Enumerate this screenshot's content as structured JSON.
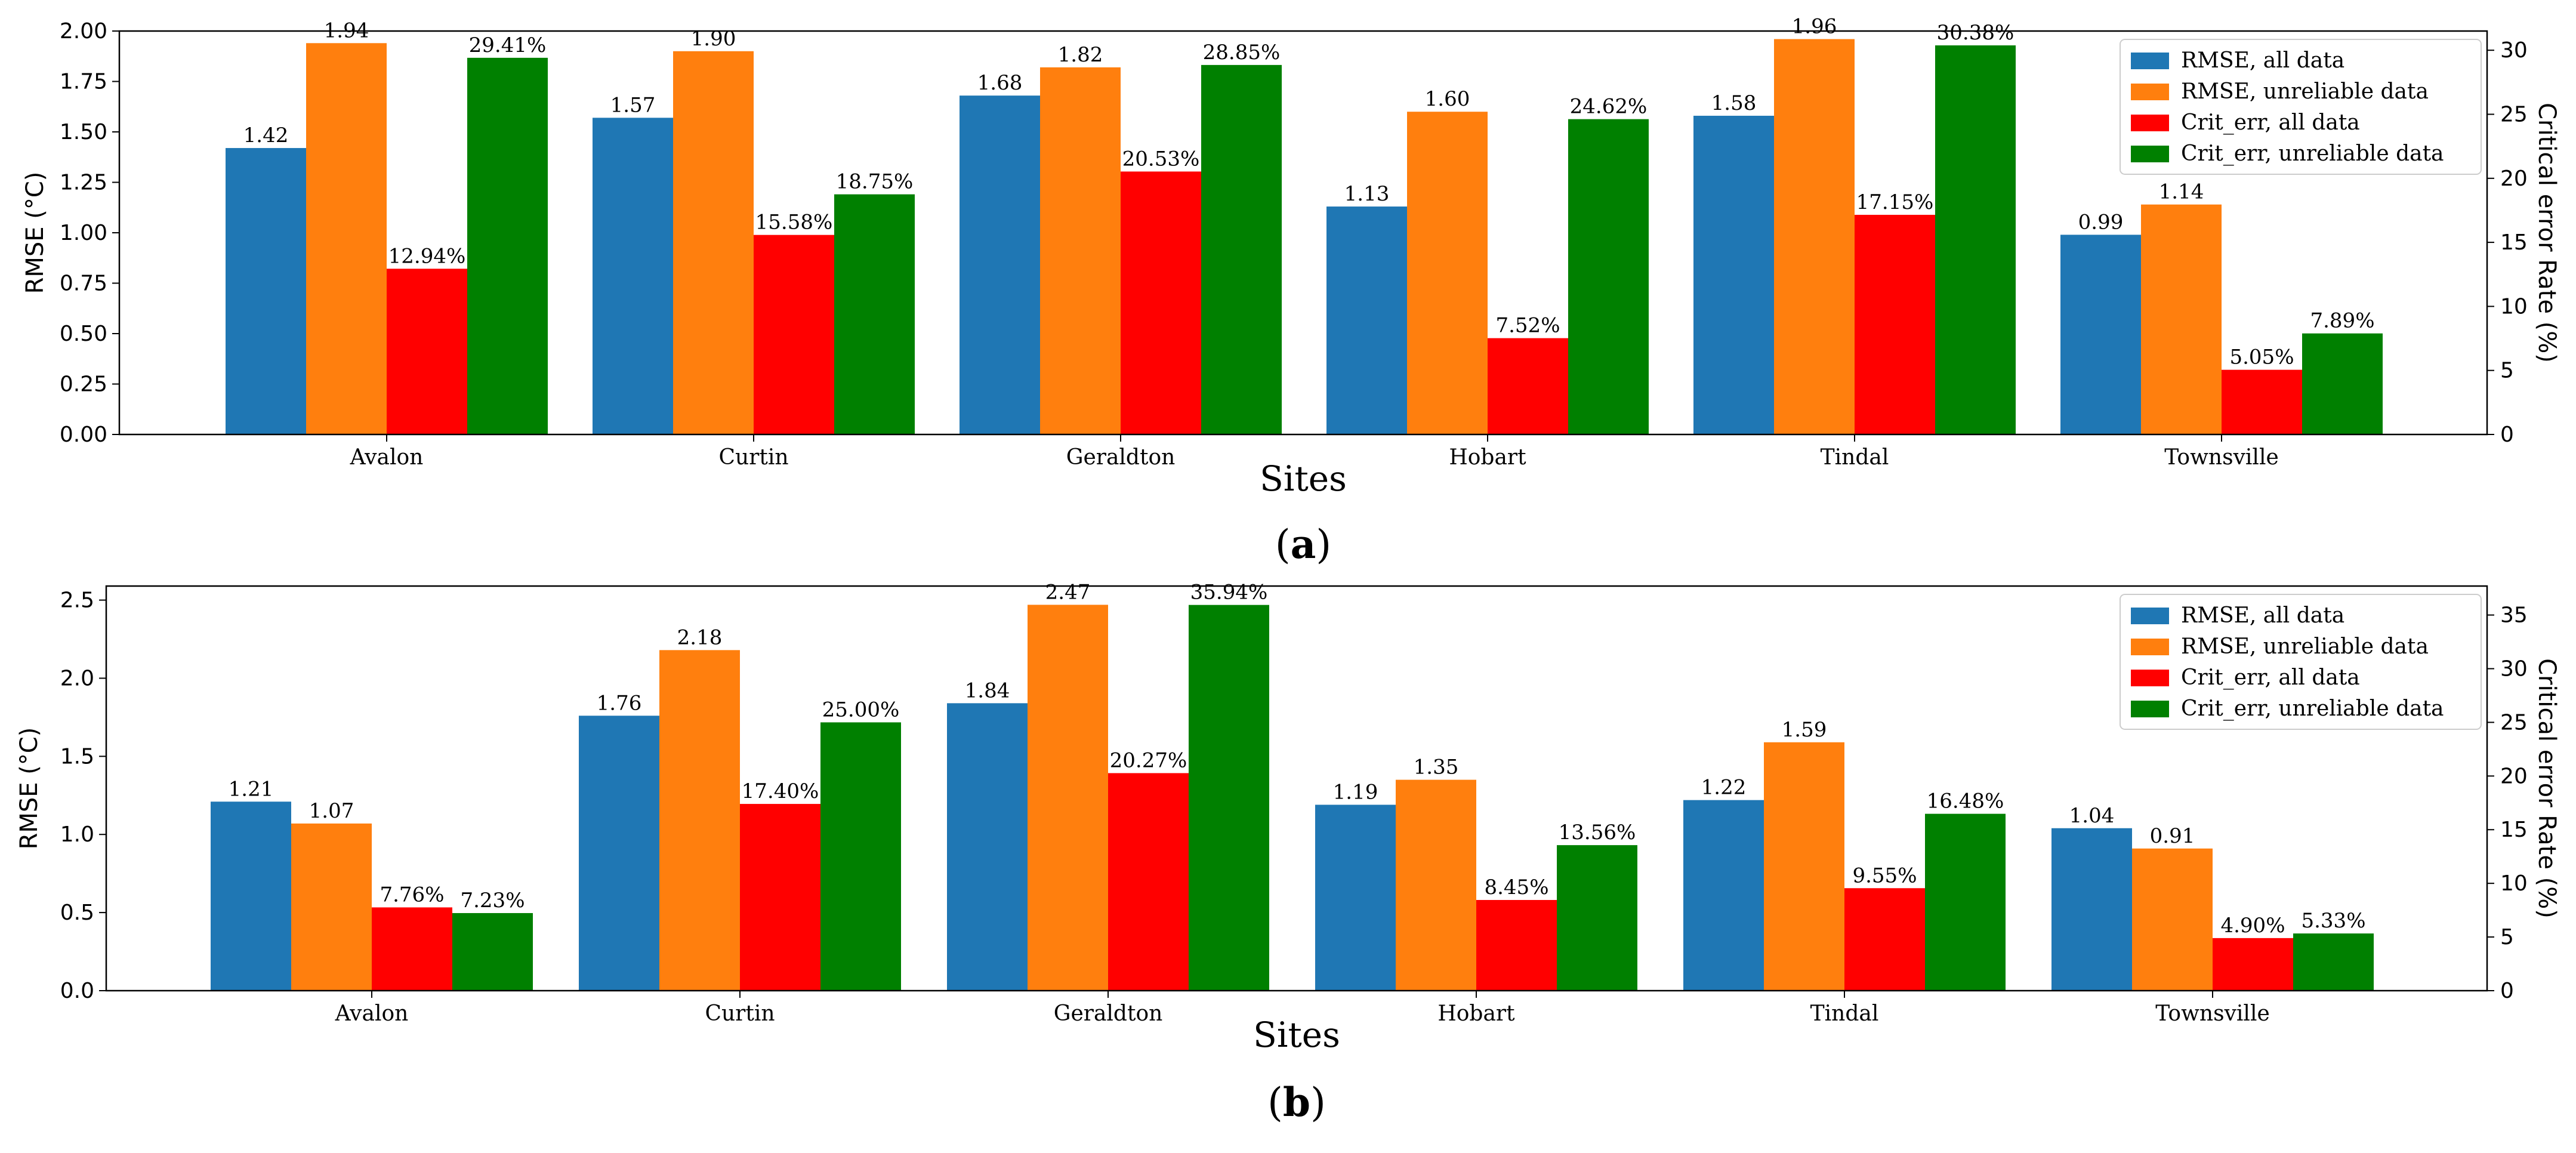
{
  "chart_data": [
    {
      "type": "bar",
      "panel": "(a)",
      "panel_letter": "a",
      "xlabel": "Sites",
      "ylabel": "RMSE (°C)",
      "y2label": "Critical error Rate (%)",
      "categories": [
        "Avalon",
        "Curtin",
        "Geraldton",
        "Hobart",
        "Tindal",
        "Townsville"
      ],
      "ylim": [
        0,
        2.0
      ],
      "yticks": [
        "0.00",
        "0.25",
        "0.50",
        "0.75",
        "1.00",
        "1.25",
        "1.50",
        "1.75",
        "2.00"
      ],
      "y2lim": [
        0,
        31.5
      ],
      "y2ticks": [
        "0",
        "5",
        "10",
        "15",
        "20",
        "25",
        "30"
      ],
      "legend_position": "top-right",
      "series": [
        {
          "name": "RMSE, all data",
          "axis": "left",
          "color": "#1f77b4",
          "values": [
            1.42,
            1.57,
            1.68,
            1.13,
            1.58,
            0.99
          ],
          "labels": [
            "1.42",
            "1.57",
            "1.68",
            "1.13",
            "1.58",
            "0.99"
          ]
        },
        {
          "name": "RMSE, unreliable data",
          "axis": "left",
          "color": "#ff7f0e",
          "values": [
            1.94,
            1.9,
            1.82,
            1.6,
            1.96,
            1.14
          ],
          "labels": [
            "1.94",
            "1.90",
            "1.82",
            "1.60",
            "1.96",
            "1.14"
          ]
        },
        {
          "name": "Crit_err, all data",
          "axis": "right",
          "color": "#ff0000",
          "values": [
            12.94,
            15.58,
            20.53,
            7.52,
            17.15,
            5.05
          ],
          "labels": [
            "12.94%",
            "15.58%",
            "20.53%",
            "7.52%",
            "17.15%",
            "5.05%"
          ]
        },
        {
          "name": "Crit_err, unreliable data",
          "axis": "right",
          "color": "#008000",
          "values": [
            29.41,
            18.75,
            28.85,
            24.62,
            30.38,
            7.89
          ],
          "labels": [
            "29.41%",
            "18.75%",
            "28.85%",
            "24.62%",
            "30.38%",
            "7.89%"
          ]
        }
      ]
    },
    {
      "type": "bar",
      "panel": "(b)",
      "panel_letter": "b",
      "xlabel": "Sites",
      "ylabel": "RMSE (°C)",
      "y2label": "Critical error Rate (%)",
      "categories": [
        "Avalon",
        "Curtin",
        "Geraldton",
        "Hobart",
        "Tindal",
        "Townsville"
      ],
      "ylim": [
        0,
        2.59
      ],
      "yticks": [
        "0.0",
        "0.5",
        "1.0",
        "1.5",
        "2.0",
        "2.5"
      ],
      "y2lim": [
        0,
        37.7
      ],
      "y2ticks": [
        "0",
        "5",
        "10",
        "15",
        "20",
        "25",
        "30",
        "35"
      ],
      "legend_position": "top-right",
      "series": [
        {
          "name": "RMSE, all data",
          "axis": "left",
          "color": "#1f77b4",
          "values": [
            1.21,
            1.76,
            1.84,
            1.19,
            1.22,
            1.04
          ],
          "labels": [
            "1.21",
            "1.76",
            "1.84",
            "1.19",
            "1.22",
            "1.04"
          ]
        },
        {
          "name": "RMSE, unreliable data",
          "axis": "left",
          "color": "#ff7f0e",
          "values": [
            1.07,
            2.18,
            2.47,
            1.35,
            1.59,
            0.91
          ],
          "labels": [
            "1.07",
            "2.18",
            "2.47",
            "1.35",
            "1.59",
            "0.91"
          ]
        },
        {
          "name": "Crit_err, all data",
          "axis": "right",
          "color": "#ff0000",
          "values": [
            7.76,
            17.4,
            20.27,
            8.45,
            9.55,
            4.9
          ],
          "labels": [
            "7.76%",
            "17.40%",
            "20.27%",
            "8.45%",
            "9.55%",
            "4.90%"
          ]
        },
        {
          "name": "Crit_err, unreliable data",
          "axis": "right",
          "color": "#008000",
          "values": [
            7.23,
            25.0,
            35.94,
            13.56,
            16.48,
            5.33
          ],
          "labels": [
            "7.23%",
            "25.00%",
            "35.94%",
            "13.56%",
            "16.48%",
            "5.33%"
          ]
        }
      ]
    }
  ]
}
